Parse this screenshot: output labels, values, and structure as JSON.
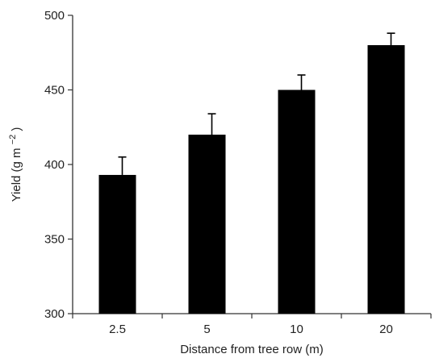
{
  "chart_data": {
    "type": "bar",
    "categories": [
      "2.5",
      "5",
      "10",
      "20"
    ],
    "values": [
      393,
      420,
      450,
      480
    ],
    "error_upper": [
      405,
      434,
      460,
      488
    ],
    "xlabel": "Distance from tree row (m)",
    "ylabel_main": "Yield (g m",
    "ylabel_sup": "−2",
    "ylabel_close": ")",
    "ylim": [
      300,
      500
    ],
    "yticks": [
      300,
      350,
      400,
      450,
      500
    ],
    "grid": false,
    "legend": "none",
    "bar_color": "#000000",
    "axis_color": "#333333"
  }
}
